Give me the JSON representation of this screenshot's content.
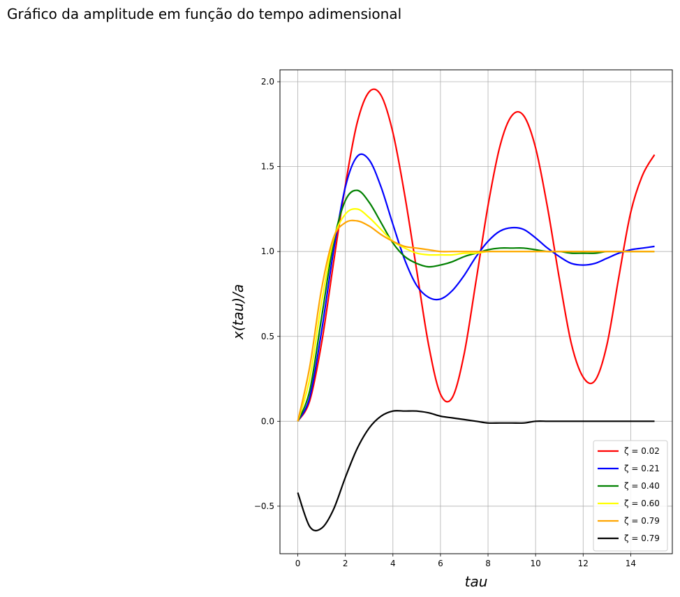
{
  "figure": {
    "title": "Gráfico da amplitude em função do tempo adimensional"
  },
  "chart_data": {
    "type": "line",
    "title": "Gráfico da amplitude em função do tempo adimensional",
    "xlabel": "tau",
    "ylabel": "x(tau)/a",
    "xlim": [
      -0.75,
      15.75
    ],
    "ylim": [
      -0.78,
      2.07
    ],
    "xticks": [
      0,
      2,
      4,
      6,
      8,
      10,
      12,
      14
    ],
    "yticks": [
      -0.5,
      0.0,
      0.5,
      1.0,
      1.5,
      2.0
    ],
    "xtick_labels": [
      "0",
      "2",
      "4",
      "6",
      "8",
      "10",
      "12",
      "14"
    ],
    "ytick_labels": [
      "−0.5",
      "0.0",
      "0.5",
      "1.0",
      "1.5",
      "2.0"
    ],
    "grid": true,
    "legend_position": "bottom-right",
    "x": [
      0,
      0.5,
      1,
      1.5,
      2,
      2.5,
      3,
      3.5,
      4,
      4.5,
      5,
      5.5,
      6,
      6.5,
      7,
      7.5,
      8,
      8.5,
      9,
      9.5,
      10,
      10.5,
      11,
      11.5,
      12,
      12.5,
      13,
      13.5,
      14,
      14.5,
      15
    ],
    "series": [
      {
        "name": "ζ = 0.02",
        "color": "#ff0000",
        "values": [
          0.0,
          0.12,
          0.46,
          0.93,
          1.39,
          1.76,
          1.94,
          1.92,
          1.7,
          1.33,
          0.89,
          0.45,
          0.16,
          0.14,
          0.4,
          0.83,
          1.27,
          1.62,
          1.8,
          1.8,
          1.61,
          1.26,
          0.84,
          0.46,
          0.26,
          0.24,
          0.45,
          0.85,
          1.23,
          1.45,
          1.57
        ]
      },
      {
        "name": "ζ = 0.21",
        "color": "#0000ff",
        "values": [
          0.0,
          0.14,
          0.53,
          1.0,
          1.38,
          1.56,
          1.54,
          1.38,
          1.16,
          0.95,
          0.8,
          0.73,
          0.72,
          0.77,
          0.86,
          0.97,
          1.06,
          1.12,
          1.14,
          1.13,
          1.08,
          1.02,
          0.97,
          0.93,
          0.92,
          0.93,
          0.96,
          0.99,
          1.01,
          1.02,
          1.03
        ]
      },
      {
        "name": "ζ = 0.40",
        "color": "#008000",
        "values": [
          0.0,
          0.18,
          0.61,
          1.05,
          1.3,
          1.36,
          1.29,
          1.17,
          1.05,
          0.97,
          0.93,
          0.91,
          0.92,
          0.94,
          0.97,
          0.99,
          1.01,
          1.02,
          1.02,
          1.02,
          1.01,
          1.0,
          1.0,
          0.99,
          0.99,
          0.99,
          1.0,
          1.0,
          1.0,
          1.0,
          1.0
        ]
      },
      {
        "name": "ζ = 0.60",
        "color": "#ffff00",
        "values": [
          0.0,
          0.25,
          0.7,
          1.07,
          1.22,
          1.25,
          1.2,
          1.13,
          1.06,
          1.02,
          0.99,
          0.98,
          0.98,
          0.98,
          0.99,
          0.99,
          1.0,
          1.0,
          1.0,
          1.0,
          1.0,
          1.0,
          1.0,
          1.0,
          1.0,
          1.0,
          1.0,
          1.0,
          1.0,
          1.0,
          1.0
        ]
      },
      {
        "name": "ζ = 0.79",
        "color": "#ffa500",
        "values": [
          0.0,
          0.32,
          0.78,
          1.08,
          1.17,
          1.18,
          1.15,
          1.1,
          1.06,
          1.03,
          1.02,
          1.01,
          1.0,
          1.0,
          1.0,
          1.0,
          1.0,
          1.0,
          1.0,
          1.0,
          1.0,
          1.0,
          1.0,
          1.0,
          1.0,
          1.0,
          1.0,
          1.0,
          1.0,
          1.0,
          1.0
        ]
      },
      {
        "name": "ζ = 0.79",
        "color": "#000000",
        "values": [
          -0.42,
          -0.62,
          -0.63,
          -0.52,
          -0.33,
          -0.16,
          -0.04,
          0.03,
          0.06,
          0.06,
          0.06,
          0.05,
          0.03,
          0.02,
          0.01,
          0.0,
          -0.01,
          -0.01,
          -0.01,
          -0.01,
          0.0,
          0.0,
          0.0,
          0.0,
          0.0,
          0.0,
          0.0,
          0.0,
          0.0,
          0.0,
          0.0
        ]
      }
    ]
  }
}
